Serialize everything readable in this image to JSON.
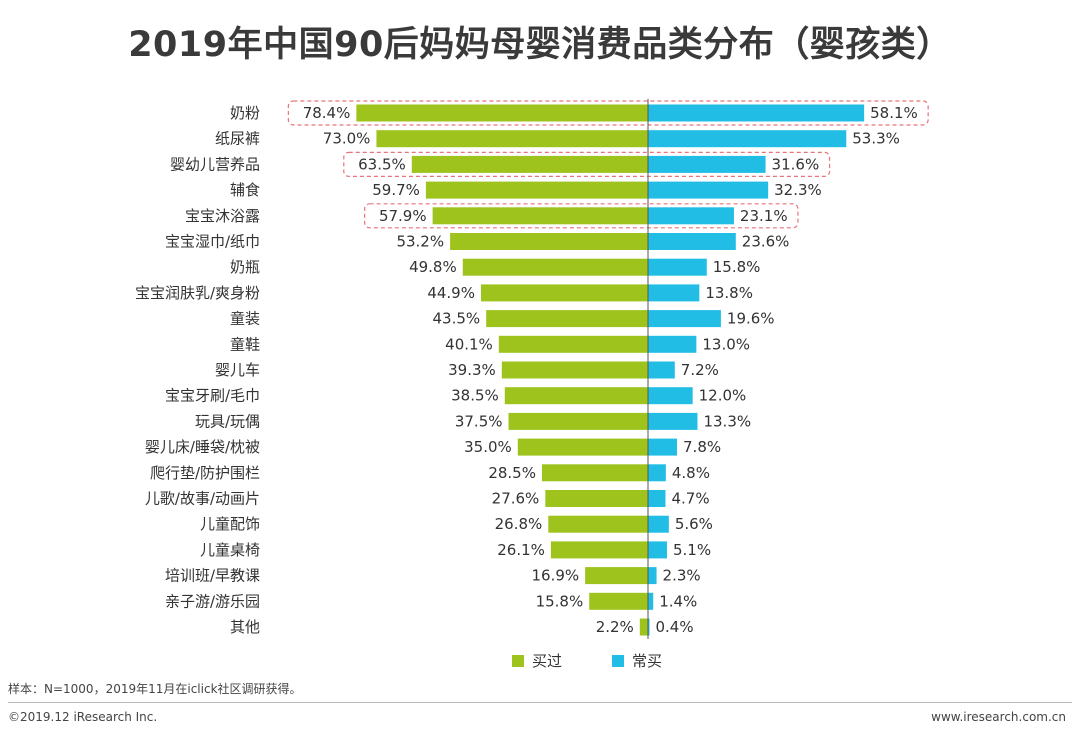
{
  "title": "2019年中国90后妈妈母婴消费品类分布（婴孩类）",
  "chart_data": {
    "type": "bar",
    "orientation": "horizontal-diverging",
    "title": "2019年中国90后妈妈母婴消费品类分布（婴孩类）",
    "categories": [
      "奶粉",
      "纸尿裤",
      "婴幼儿营养品",
      "辅食",
      "宝宝沐浴露",
      "宝宝湿巾/纸巾",
      "奶瓶",
      "宝宝润肤乳/爽身粉",
      "童装",
      "童鞋",
      "婴儿车",
      "宝宝牙刷/毛巾",
      "玩具/玩偶",
      "婴儿床/睡袋/枕被",
      "爬行垫/防护围栏",
      "儿歌/故事/动画片",
      "儿童配饰",
      "儿童桌椅",
      "培训班/早教课",
      "亲子游/游乐园",
      "其他"
    ],
    "series": [
      {
        "name": "买过",
        "color": "#9dc31c",
        "side": "left",
        "values": [
          78.4,
          73.0,
          63.5,
          59.7,
          57.9,
          53.2,
          49.8,
          44.9,
          43.5,
          40.1,
          39.3,
          38.5,
          37.5,
          35.0,
          28.5,
          27.6,
          26.8,
          26.1,
          16.9,
          15.8,
          2.2
        ],
        "labels": [
          "78.4%",
          "73.0%",
          "63.5%",
          "59.7%",
          "57.9%",
          "53.2%",
          "49.8%",
          "44.9%",
          "43.5%",
          "40.1%",
          "39.3%",
          "38.5%",
          "37.5%",
          "35.0%",
          "28.5%",
          "27.6%",
          "26.8%",
          "26.1%",
          "16.9%",
          "15.8%",
          "2.2%"
        ]
      },
      {
        "name": "常买",
        "color": "#22bde5",
        "side": "right",
        "values": [
          58.1,
          53.3,
          31.6,
          32.3,
          23.1,
          23.6,
          15.8,
          13.8,
          19.6,
          13.0,
          7.2,
          12.0,
          13.3,
          7.8,
          4.8,
          4.7,
          5.6,
          5.1,
          2.3,
          1.4,
          0.4
        ],
        "labels": [
          "58.1%",
          "53.3%",
          "31.6%",
          "32.3%",
          "23.1%",
          "23.6%",
          "15.8%",
          "13.8%",
          "19.6%",
          "13.0%",
          "7.2%",
          "12.0%",
          "13.3%",
          "7.8%",
          "4.8%",
          "4.7%",
          "5.6%",
          "5.1%",
          "2.3%",
          "1.4%",
          "0.4%"
        ]
      }
    ],
    "highlighted_categories": [
      "奶粉",
      "婴幼儿营养品",
      "宝宝沐浴露"
    ],
    "legend": [
      "买过",
      "常买"
    ],
    "legend_position": "bottom-center",
    "unit": "%"
  },
  "note": "样本：N=1000，2019年11月在iclick社区调研获得。",
  "copyright": "©2019.12 iResearch Inc.",
  "website": "www.iresearch.com.cn"
}
